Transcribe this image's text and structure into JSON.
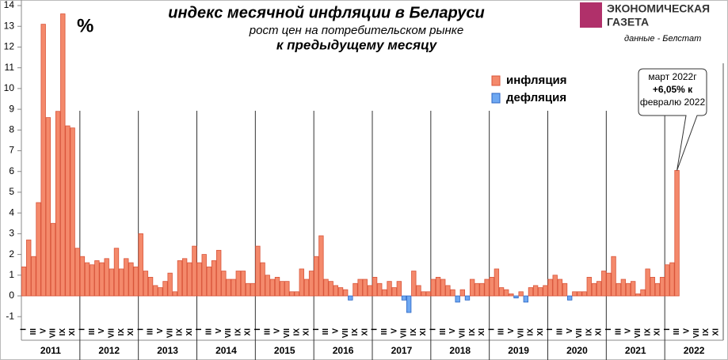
{
  "chart_data": {
    "type": "bar",
    "title": "индекс месячной инфляции в Беларуси",
    "subtitle": "рост цен на потребительском рынке",
    "subtitle2": "к предыдущему месяцу",
    "unit": "%",
    "source": "данные - Белстат",
    "logo": [
      "ЭКОНОМИЧЕСКАЯ",
      "ГАЗЕТА"
    ],
    "legend": [
      {
        "name": "инфляция",
        "color": "#f4896b"
      },
      {
        "name": "дефляция",
        "color": "#6ea8f2"
      }
    ],
    "annotation": [
      "март 2022г",
      "+6,05% к",
      "февралю 2022"
    ],
    "years": [
      "2011",
      "2012",
      "2013",
      "2014",
      "2015",
      "2016",
      "2017",
      "2018",
      "2019",
      "2020",
      "2021",
      "2022"
    ],
    "categories": [
      "I",
      null,
      "III",
      null,
      "V",
      null,
      "VII",
      null,
      "IX",
      null,
      "XI",
      null,
      "I",
      null,
      "III",
      null,
      "V",
      null,
      "VII",
      null,
      "IX",
      null,
      "XI",
      null,
      "I",
      null,
      "III",
      null,
      "V",
      null,
      "VII",
      null,
      "IX",
      null,
      "XI",
      null,
      "I",
      null,
      "III",
      null,
      "V",
      null,
      "VII",
      null,
      "IX",
      null,
      "XI",
      null,
      "I",
      null,
      "III",
      null,
      "V",
      null,
      "VII",
      null,
      "IX",
      null,
      "XI",
      null,
      "I",
      null,
      "III",
      null,
      "V",
      null,
      "VII",
      null,
      "IX",
      null,
      "XI",
      null,
      "I",
      null,
      "III",
      null,
      "V",
      null,
      "VII",
      null,
      "IX",
      null,
      "XI",
      null,
      "I",
      null,
      "III",
      null,
      "V",
      null,
      "VII",
      null,
      "IX",
      null,
      "XI",
      null,
      "I",
      null,
      "III",
      null,
      "V",
      null,
      "VII",
      null,
      "IX",
      null,
      "XI",
      null,
      "I",
      null,
      "III",
      null,
      "V",
      null,
      "VII",
      null,
      "IX",
      null,
      "XI",
      null,
      "I",
      null,
      "III",
      null,
      "V",
      null,
      "VII",
      null,
      "IX",
      null,
      "XI",
      null,
      "I",
      null,
      "III",
      null,
      "V",
      null,
      "VII",
      null,
      "IX",
      null,
      "XI",
      null
    ],
    "values": [
      1.4,
      2.7,
      1.9,
      4.5,
      13.1,
      8.6,
      3.5,
      8.9,
      13.6,
      8.2,
      8.1,
      2.3,
      1.9,
      1.6,
      1.5,
      1.7,
      1.6,
      1.8,
      1.3,
      2.3,
      1.3,
      1.8,
      1.6,
      1.4,
      3.0,
      1.2,
      0.9,
      0.5,
      0.4,
      0.7,
      1.1,
      0.2,
      1.7,
      1.8,
      1.6,
      2.4,
      1.6,
      2.0,
      1.4,
      1.7,
      2.2,
      1.2,
      0.8,
      0.8,
      1.2,
      1.2,
      0.6,
      0.6,
      2.4,
      1.6,
      1.0,
      0.8,
      0.9,
      0.7,
      0.7,
      0.2,
      0.2,
      1.3,
      0.8,
      1.2,
      1.9,
      2.9,
      0.8,
      0.7,
      0.5,
      0.4,
      0.3,
      -0.2,
      0.6,
      0.8,
      0.8,
      0.5,
      0.9,
      0.6,
      0.3,
      0.7,
      0.4,
      0.7,
      -0.2,
      -0.8,
      1.2,
      0.5,
      0.2,
      0.2,
      0.8,
      0.9,
      0.8,
      0.5,
      0.3,
      -0.3,
      0.3,
      -0.2,
      0.8,
      0.6,
      0.6,
      0.8,
      0.9,
      1.3,
      0.4,
      0.3,
      0.1,
      -0.1,
      0.2,
      -0.3,
      0.4,
      0.5,
      0.4,
      0.5,
      0.8,
      1.0,
      0.8,
      0.6,
      -0.2,
      0.2,
      0.2,
      0.2,
      0.9,
      0.6,
      0.7,
      1.2,
      1.1,
      1.9,
      0.6,
      0.8,
      0.6,
      0.7,
      0.1,
      0.3,
      1.3,
      0.9,
      0.6,
      0.9,
      1.5,
      1.6,
      6.05,
      null,
      null,
      null,
      null,
      null,
      null,
      null,
      null,
      null
    ],
    "annotation_index": 134,
    "ylim": [
      -1.4,
      14.2
    ],
    "yticks": [
      -1,
      0,
      1,
      2,
      3,
      4,
      5,
      6,
      7,
      8,
      9,
      10,
      11,
      12,
      13,
      14
    ]
  }
}
